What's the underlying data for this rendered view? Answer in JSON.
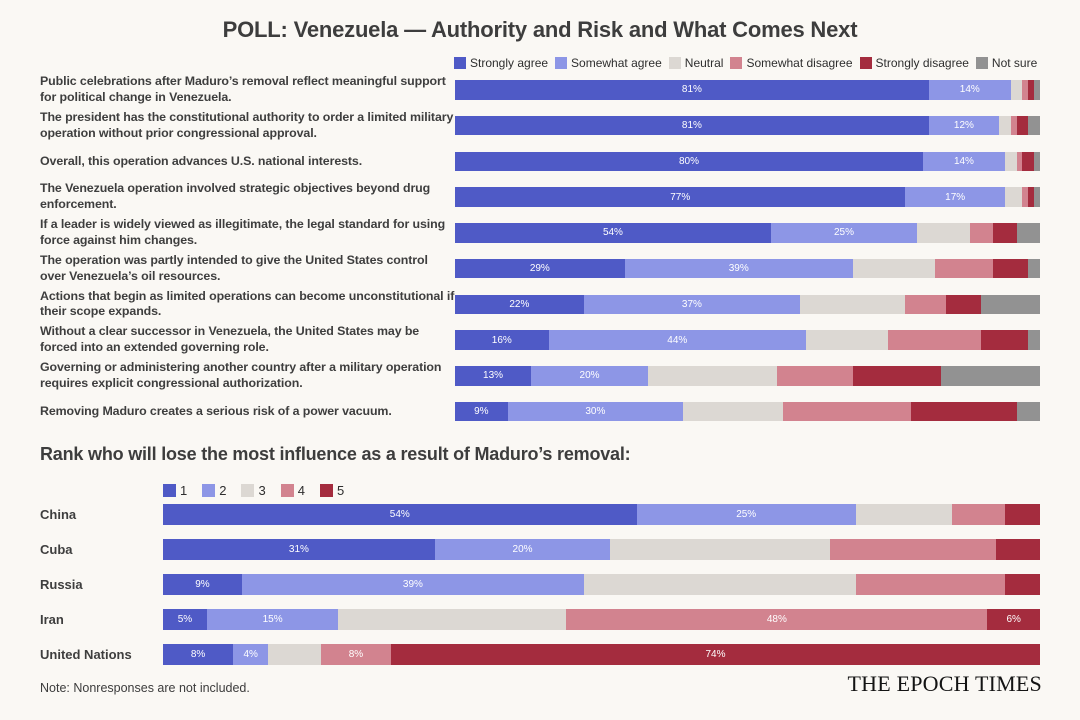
{
  "title": "POLL: Venezuela — Authority and Risk and What Comes Next",
  "section2_heading": "Rank who will lose the most influence as a result of Maduro’s removal:",
  "note": "Note: Nonresponses are not included.",
  "logo": "THE EPOCH TIMES",
  "background_color": "#faf8f4",
  "chart_data": [
    {
      "type": "bar",
      "stacked": true,
      "orientation": "horizontal",
      "xlim": [
        0,
        100
      ],
      "unit": "%",
      "grid": false,
      "legend_position": "top",
      "series_names": [
        "Strongly agree",
        "Somewhat agree",
        "Neutral",
        "Somewhat disagree",
        "Strongly disagree",
        "Not sure"
      ],
      "series_colors": [
        "#4f5ac6",
        "#8d96e6",
        "#dcd8d3",
        "#d2838f",
        "#a42c3e",
        "#929292"
      ],
      "value_labels_on_series": [
        0,
        1
      ],
      "categories": [
        "Public celebrations after Maduro’s removal reflect meaningful support for political change in Venezuela.",
        "The president has the constitutional authority to order a limited military operation without prior congressional approval.",
        "Overall, this operation advances U.S. national interests.",
        "The Venezuela operation involved strategic objectives beyond drug enforcement.",
        "If a leader is widely viewed as illegitimate, the legal standard for using force against him changes.",
        "The operation was partly intended to give the United States control over Venezuela’s oil resources.",
        "Actions that begin as limited operations can become unconstitutional if their scope expands.",
        "Without a clear successor in Venezuela, the United States may be forced into an extended governing role.",
        "Governing or administering another country after a military operation requires explicit congressional authorization.",
        "Removing Maduro creates a serious risk of a power vacuum."
      ],
      "rows": [
        [
          81,
          14,
          2,
          1,
          1,
          1
        ],
        [
          81,
          12,
          2,
          1,
          2,
          2
        ],
        [
          80,
          14,
          2,
          1,
          2,
          1
        ],
        [
          77,
          17,
          3,
          1,
          1,
          1
        ],
        [
          54,
          25,
          9,
          4,
          4,
          4
        ],
        [
          29,
          39,
          14,
          10,
          6,
          2
        ],
        [
          22,
          37,
          18,
          7,
          6,
          10
        ],
        [
          16,
          44,
          14,
          16,
          8,
          2
        ],
        [
          13,
          20,
          22,
          13,
          15,
          17
        ],
        [
          9,
          30,
          17,
          22,
          18,
          4
        ]
      ]
    },
    {
      "type": "bar",
      "stacked": true,
      "orientation": "horizontal",
      "xlim": [
        0,
        100
      ],
      "unit": "%",
      "grid": false,
      "legend_position": "top",
      "series_names": [
        "1",
        "2",
        "3",
        "4",
        "5"
      ],
      "series_colors": [
        "#4f5ac6",
        "#8d96e6",
        "#dcd8d3",
        "#d2838f",
        "#a42c3e"
      ],
      "value_labels_per_row": [
        [
          0,
          1
        ],
        [
          0,
          1
        ],
        [
          0,
          1
        ],
        [
          0,
          1,
          3,
          4
        ],
        [
          0,
          1,
          3,
          4
        ]
      ],
      "categories": [
        "China",
        "Cuba",
        "Russia",
        "Iran",
        "United Nations"
      ],
      "rows": [
        [
          54,
          25,
          11,
          6,
          4
        ],
        [
          31,
          20,
          25,
          19,
          5
        ],
        [
          9,
          39,
          31,
          17,
          4
        ],
        [
          5,
          15,
          26,
          48,
          6
        ],
        [
          8,
          4,
          6,
          8,
          74
        ]
      ]
    }
  ]
}
